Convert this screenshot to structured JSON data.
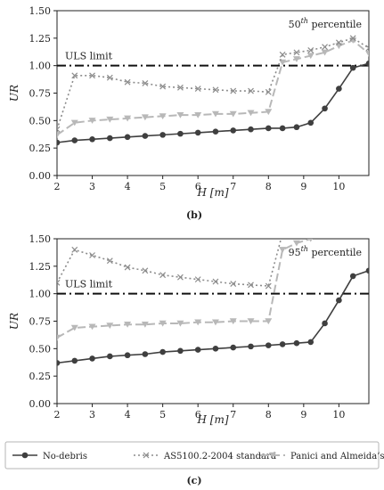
{
  "chart_data": [
    {
      "type": "line",
      "panel_label": "(b)",
      "annotation": "50th percentile",
      "annotation_base": "50",
      "annotation_sup": "th",
      "annotation_rest": " percentile",
      "threshold_label": "ULS limit",
      "threshold": 1.0,
      "xlabel": "H [m]",
      "ylabel": "UR",
      "xlim": [
        2,
        10.85
      ],
      "ylim": [
        0,
        1.5
      ],
      "xticks": [
        2,
        3,
        4,
        5,
        6,
        7,
        8,
        9,
        10
      ],
      "yticks": [
        0.0,
        0.25,
        0.5,
        0.75,
        1.0,
        1.25,
        1.5
      ],
      "series": [
        {
          "name": "No-debris",
          "color": "#3f3f3f",
          "x": [
            2.0,
            2.5,
            3.0,
            3.5,
            4.0,
            4.5,
            5.0,
            5.5,
            6.0,
            6.5,
            7.0,
            7.5,
            8.0,
            8.4,
            8.8,
            9.2,
            9.6,
            10.0,
            10.4,
            10.85
          ],
          "y": [
            0.3,
            0.32,
            0.33,
            0.34,
            0.35,
            0.36,
            0.37,
            0.38,
            0.39,
            0.4,
            0.41,
            0.42,
            0.43,
            0.43,
            0.44,
            0.48,
            0.61,
            0.79,
            0.98,
            1.02
          ]
        },
        {
          "name": "AS5100.2-2004 standard",
          "color": "#8c8c8c",
          "x": [
            2.0,
            2.5,
            3.0,
            3.5,
            4.0,
            4.5,
            5.0,
            5.5,
            6.0,
            6.5,
            7.0,
            7.5,
            8.0,
            8.4,
            8.8,
            9.2,
            9.6,
            10.0,
            10.4,
            10.85
          ],
          "y": [
            0.42,
            0.91,
            0.91,
            0.89,
            0.85,
            0.84,
            0.81,
            0.8,
            0.79,
            0.78,
            0.77,
            0.77,
            0.76,
            1.1,
            1.12,
            1.14,
            1.17,
            1.21,
            1.25,
            1.16
          ]
        },
        {
          "name": "Panici and Almeida’s model",
          "color": "#b8b8b8",
          "x": [
            2.0,
            2.5,
            3.0,
            3.5,
            4.0,
            4.5,
            5.0,
            5.5,
            6.0,
            6.5,
            7.0,
            7.5,
            8.0,
            8.4,
            8.8,
            9.2,
            9.6,
            10.0,
            10.4,
            10.85
          ],
          "y": [
            0.37,
            0.48,
            0.5,
            0.51,
            0.52,
            0.53,
            0.54,
            0.55,
            0.55,
            0.56,
            0.56,
            0.57,
            0.58,
            1.03,
            1.06,
            1.09,
            1.12,
            1.18,
            1.23,
            1.11
          ]
        }
      ]
    },
    {
      "type": "line",
      "panel_label": "(c)",
      "annotation": "95th percentile",
      "annotation_base": "95",
      "annotation_sup": "th",
      "annotation_rest": " percentile",
      "threshold_label": "ULS limit",
      "threshold": 1.0,
      "xlabel": "H [m]",
      "ylabel": "UR",
      "xlim": [
        2,
        10.85
      ],
      "ylim": [
        0,
        1.5
      ],
      "xticks": [
        2,
        3,
        4,
        5,
        6,
        7,
        8,
        9,
        10
      ],
      "yticks": [
        0.0,
        0.25,
        0.5,
        0.75,
        1.0,
        1.25,
        1.5
      ],
      "series": [
        {
          "name": "No-debris",
          "color": "#3f3f3f",
          "x": [
            2.0,
            2.5,
            3.0,
            3.5,
            4.0,
            4.5,
            5.0,
            5.5,
            6.0,
            6.5,
            7.0,
            7.5,
            8.0,
            8.4,
            8.8,
            9.2,
            9.6,
            10.0,
            10.4,
            10.85
          ],
          "y": [
            0.37,
            0.39,
            0.41,
            0.43,
            0.44,
            0.45,
            0.47,
            0.48,
            0.49,
            0.5,
            0.51,
            0.52,
            0.53,
            0.54,
            0.55,
            0.56,
            0.73,
            0.94,
            1.16,
            1.21
          ]
        },
        {
          "name": "AS5100.2-2004 standard",
          "color": "#8c8c8c",
          "x": [
            2.0,
            2.5,
            3.0,
            3.5,
            4.0,
            4.5,
            5.0,
            5.5,
            6.0,
            6.5,
            7.0,
            7.5,
            8.0,
            8.4,
            8.8
          ],
          "y": [
            1.1,
            1.4,
            1.35,
            1.3,
            1.24,
            1.21,
            1.17,
            1.15,
            1.13,
            1.11,
            1.09,
            1.08,
            1.07,
            1.55,
            1.58
          ]
        },
        {
          "name": "Panici and Almeida’s model",
          "color": "#b8b8b8",
          "x": [
            2.0,
            2.5,
            3.0,
            3.5,
            4.0,
            4.5,
            5.0,
            5.5,
            6.0,
            6.5,
            7.0,
            7.5,
            8.0,
            8.4,
            8.8,
            9.2
          ],
          "y": [
            0.6,
            0.69,
            0.7,
            0.71,
            0.72,
            0.72,
            0.73,
            0.73,
            0.74,
            0.74,
            0.75,
            0.75,
            0.75,
            1.4,
            1.46,
            1.5
          ]
        }
      ]
    }
  ],
  "legend": {
    "placement": "bottom",
    "items": [
      {
        "name": "No-debris",
        "marker": "circle"
      },
      {
        "name": "AS5100.2-2004 standard",
        "marker": "x"
      },
      {
        "name": "Panici and Almeida’s model",
        "marker": "triangle-down"
      }
    ]
  }
}
